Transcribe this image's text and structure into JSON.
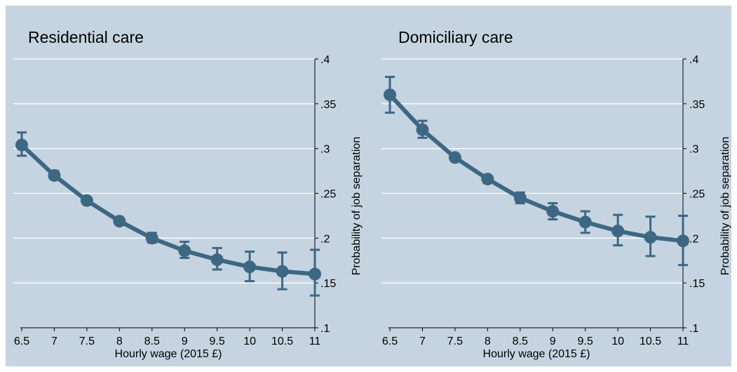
{
  "colors": {
    "background": "#c5d4e0",
    "series": "#3d6884",
    "grid": "#ffffff"
  },
  "chart_data": [
    {
      "type": "line",
      "title": "Residential care",
      "xlabel": "Hourly wage (2015 £)",
      "ylabel": "Probability of job separation",
      "xlim": [
        6.5,
        11
      ],
      "ylim": [
        0.1,
        0.4
      ],
      "x_ticks": [
        "6.5",
        "7",
        "7.5",
        "8",
        "8.5",
        "9",
        "9.5",
        "10",
        "10.5",
        "11"
      ],
      "y_ticks": [
        ".1",
        ".15",
        ".2",
        ".25",
        ".3",
        ".35",
        ".4"
      ],
      "grid": true,
      "series": [
        {
          "x": [
            6.5,
            7,
            7.5,
            8,
            8.5,
            9,
            9.5,
            10,
            10.5,
            11
          ],
          "values": [
            0.304,
            0.27,
            0.242,
            0.219,
            0.2,
            0.186,
            0.176,
            0.168,
            0.163,
            0.16
          ],
          "ci_low": [
            0.292,
            0.266,
            0.239,
            0.216,
            0.195,
            0.178,
            0.165,
            0.152,
            0.143,
            0.136
          ],
          "ci_high": [
            0.318,
            0.275,
            0.245,
            0.222,
            0.206,
            0.196,
            0.189,
            0.185,
            0.184,
            0.187
          ]
        }
      ]
    },
    {
      "type": "line",
      "title": "Domiciliary care",
      "xlabel": "Hourly wage (2015 £)",
      "ylabel": "Probability of job separation",
      "xlim": [
        6.5,
        11
      ],
      "ylim": [
        0.1,
        0.4
      ],
      "x_ticks": [
        "6.5",
        "7",
        "7.5",
        "8",
        "8.5",
        "9",
        "9.5",
        "10",
        "10.5",
        "11"
      ],
      "y_ticks": [
        ".1",
        ".15",
        ".2",
        ".25",
        ".3",
        ".35",
        ".4"
      ],
      "grid": true,
      "series": [
        {
          "x": [
            6.5,
            7,
            7.5,
            8,
            8.5,
            9,
            9.5,
            10,
            10.5,
            11
          ],
          "values": [
            0.36,
            0.321,
            0.29,
            0.266,
            0.245,
            0.23,
            0.218,
            0.208,
            0.201,
            0.197
          ],
          "ci_low": [
            0.34,
            0.312,
            0.287,
            0.262,
            0.239,
            0.221,
            0.206,
            0.192,
            0.18,
            0.17
          ],
          "ci_high": [
            0.38,
            0.331,
            0.293,
            0.269,
            0.251,
            0.239,
            0.23,
            0.226,
            0.224,
            0.225
          ]
        }
      ]
    }
  ]
}
